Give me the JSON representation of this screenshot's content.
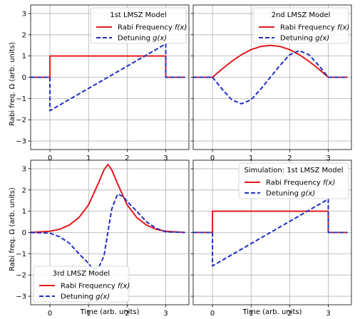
{
  "figure": {
    "ylabel": "Rabi freq. Ω (arb. units)",
    "xlabel": "Time (arb. units)"
  },
  "colors": {
    "rabi": "#e41a1c",
    "detuning": "#1f2fbf",
    "grid": "#b0b0b0"
  },
  "chart_data": [
    {
      "type": "line",
      "legend_title": "1st LMSZ Model",
      "legend_loc": "top-right",
      "xlim": [
        -0.5,
        3.6
      ],
      "ylim": [
        -3.4,
        3.4
      ],
      "xticks": [
        0,
        1,
        2,
        3
      ],
      "yticks": [
        -3,
        -2,
        -1,
        0,
        1,
        2,
        3
      ],
      "grid": true,
      "series": [
        {
          "name": "Rabi Frequency",
          "name_math": "f(x)",
          "style": "solid",
          "x": [
            -0.5,
            0,
            0,
            3,
            3,
            3.5
          ],
          "y": [
            0,
            0,
            1,
            1,
            0,
            0
          ]
        },
        {
          "name": "Detuning",
          "name_math": "g(x)",
          "style": "dashed",
          "x": [
            -0.5,
            0,
            0,
            3,
            3,
            3.5
          ],
          "y": [
            0,
            0,
            -1.57,
            1.57,
            0,
            0
          ]
        }
      ]
    },
    {
      "type": "line",
      "legend_title": "2nd LMSZ Model",
      "legend_loc": "top-right",
      "xlim": [
        -0.5,
        3.6
      ],
      "ylim": [
        -3.4,
        3.4
      ],
      "xticks": [
        0,
        1,
        2,
        3
      ],
      "yticks": [
        -3,
        -2,
        -1,
        0,
        1,
        2,
        3
      ],
      "grid": true,
      "series": [
        {
          "name": "Rabi Frequency",
          "name_math": "f(x)",
          "style": "solid",
          "x": [
            -0.5,
            0,
            0.25,
            0.5,
            0.75,
            1,
            1.25,
            1.5,
            1.75,
            2,
            2.25,
            2.5,
            2.75,
            3,
            3.5
          ],
          "y": [
            0,
            0,
            0.39,
            0.75,
            1.06,
            1.3,
            1.45,
            1.5,
            1.45,
            1.3,
            1.06,
            0.75,
            0.39,
            0,
            0
          ]
        },
        {
          "name": "Detuning",
          "name_math": "g(x)",
          "style": "dashed",
          "x": [
            -0.5,
            0,
            0.25,
            0.5,
            0.75,
            1,
            1.25,
            1.5,
            1.75,
            2,
            2.25,
            2.5,
            2.75,
            3,
            3.5
          ],
          "y": [
            0,
            0,
            -0.56,
            -1.06,
            -1.25,
            -1.06,
            -0.56,
            0,
            0.56,
            1.06,
            1.25,
            1.06,
            0.56,
            0,
            0
          ]
        }
      ]
    },
    {
      "type": "line",
      "legend_title": "3rd LMSZ Model",
      "legend_loc": "bottom-left",
      "xlim": [
        -0.5,
        3.6
      ],
      "ylim": [
        -3.4,
        3.4
      ],
      "xticks": [
        0,
        1,
        2,
        3
      ],
      "yticks": [
        -3,
        -2,
        -1,
        0,
        1,
        2,
        3
      ],
      "grid": true,
      "series": [
        {
          "name": "Rabi Frequency",
          "name_math": "f(x)",
          "style": "solid",
          "x": [
            -0.5,
            0,
            0.25,
            0.5,
            0.75,
            1,
            1.25,
            1.4,
            1.5,
            1.6,
            1.75,
            2,
            2.25,
            2.5,
            2.75,
            3,
            3.5
          ],
          "y": [
            0,
            0.06,
            0.15,
            0.35,
            0.7,
            1.3,
            2.3,
            2.95,
            3.2,
            2.95,
            2.3,
            1.3,
            0.7,
            0.35,
            0.15,
            0.06,
            0
          ]
        },
        {
          "name": "Detuning",
          "name_math": "g(x)",
          "style": "dashed",
          "x": [
            -0.5,
            0,
            0.25,
            0.5,
            0.75,
            1,
            1.1,
            1.25,
            1.4,
            1.5,
            1.6,
            1.75,
            1.9,
            2,
            2.25,
            2.5,
            2.75,
            3,
            3.5
          ],
          "y": [
            0,
            -0.03,
            -0.2,
            -0.5,
            -1.0,
            -1.45,
            -1.7,
            -1.7,
            -1.1,
            0,
            1.1,
            1.8,
            1.7,
            1.45,
            1.0,
            0.5,
            0.2,
            0.03,
            0
          ]
        }
      ]
    },
    {
      "type": "line",
      "legend_title": "Simulation: 1st LMSZ Model",
      "legend_loc": "top-right",
      "xlim": [
        -0.5,
        3.6
      ],
      "ylim": [
        -3.4,
        3.4
      ],
      "xticks": [
        0,
        1,
        2,
        3
      ],
      "yticks": [
        -3,
        -2,
        -1,
        0,
        1,
        2,
        3
      ],
      "grid": true,
      "series": [
        {
          "name": "Rabi Frequency",
          "name_math": "f(x)",
          "style": "solid",
          "x": [
            -0.5,
            0,
            0,
            3,
            3,
            3.5
          ],
          "y": [
            0,
            0,
            1,
            1,
            0,
            0
          ]
        },
        {
          "name": "Detuning",
          "name_math": "g(x)",
          "style": "dashed",
          "x": [
            -0.5,
            0,
            0,
            3,
            3,
            3.5
          ],
          "y": [
            0,
            0,
            -1.57,
            1.57,
            0,
            0
          ]
        }
      ]
    }
  ]
}
